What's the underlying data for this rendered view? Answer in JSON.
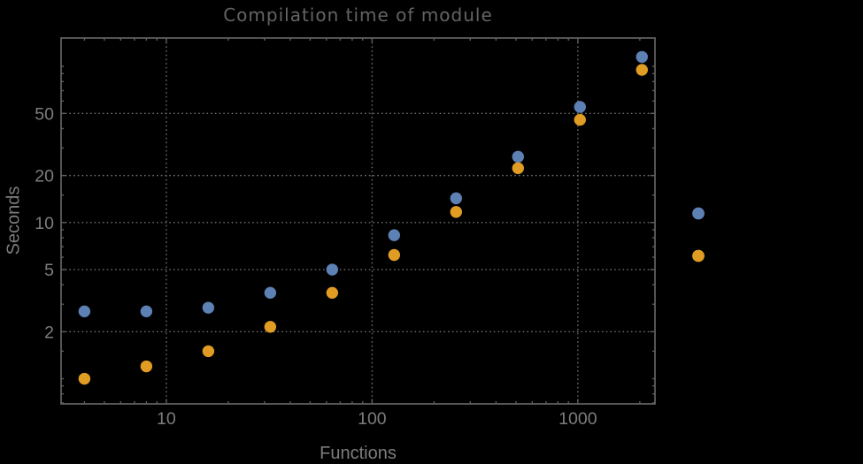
{
  "title": "Compilation time of module",
  "colors": {
    "background": "#000000",
    "frame": "#5e5e5e",
    "grid": "#6e6e6e",
    "title_text": "#646464",
    "axis_label_text": "#7d7d7d",
    "tick_label_text": "#7d7d7d",
    "series1": "#5E81B5",
    "series2": "#E19C24"
  },
  "chart_data": {
    "type": "scatter",
    "title": "Compilation time of module",
    "xlabel": "Functions",
    "ylabel": "Seconds",
    "x_scale": "log",
    "y_scale": "log",
    "x": [
      4,
      8,
      16,
      32,
      64,
      128,
      256,
      512,
      1024,
      2048
    ],
    "series": [
      {
        "name": "series-1",
        "color": "#5E81B5",
        "values": [
          2.7,
          2.7,
          2.85,
          3.55,
          5.0,
          8.3,
          14.3,
          26.4,
          55,
          115
        ]
      },
      {
        "name": "series-2",
        "color": "#E19C24",
        "values": [
          1.0,
          1.2,
          1.5,
          2.15,
          3.55,
          6.2,
          11.7,
          22.3,
          45.5,
          95
        ]
      }
    ],
    "x_major_ticks": [
      10,
      100,
      1000
    ],
    "x_major_tick_labels": [
      "10",
      "100",
      "1000"
    ],
    "x_minor_ticks": [
      4,
      5,
      6,
      7,
      8,
      9,
      20,
      30,
      40,
      50,
      60,
      70,
      80,
      90,
      200,
      300,
      400,
      500,
      600,
      700,
      800,
      900,
      2000
    ],
    "y_major_ticks": [
      2,
      5,
      10,
      20,
      50
    ],
    "y_major_tick_labels": [
      "2",
      "5",
      "10",
      "20",
      "50"
    ],
    "y_minor_ticks": [
      0.7,
      0.8,
      0.9,
      1,
      1.5,
      3,
      4,
      6,
      7,
      8,
      9,
      15,
      30,
      40,
      60,
      70,
      80,
      90,
      100
    ],
    "x_range": [
      3.08,
      2370
    ],
    "y_range": [
      0.69,
      152
    ],
    "grid": "dotted",
    "grid_x_at": [
      10,
      100,
      1000
    ],
    "grid_y_at": [
      2,
      5,
      10,
      20,
      50
    ],
    "legend_position": "right-outside",
    "legend_labels_visible": false,
    "legend_markers": [
      {
        "series": "series-1",
        "color": "#5E81B5"
      },
      {
        "series": "series-2",
        "color": "#E19C24"
      }
    ]
  }
}
